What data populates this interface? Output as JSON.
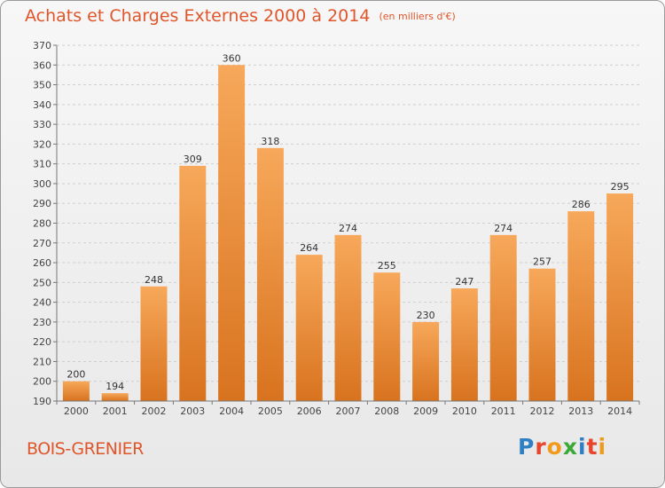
{
  "title": "Achats et Charges Externes 2000 à 2014",
  "subtitle": "(en milliers d'€)",
  "footer_label": "BOIS-GRENIER",
  "logo": {
    "text": "Proxiti",
    "letters": [
      {
        "char": "P",
        "color": "#2e7fc4"
      },
      {
        "char": "r",
        "color": "#e8452c"
      },
      {
        "char": "o",
        "color": "#f29a1b"
      },
      {
        "char": "x",
        "color": "#3aa935"
      },
      {
        "char": "i",
        "color": "#2e7fc4"
      },
      {
        "char": "t",
        "color": "#e8452c"
      },
      {
        "char": "i",
        "color": "#f29a1b"
      }
    ]
  },
  "colors": {
    "accent": "#e0562a",
    "bar_top": "#f7a85a",
    "bar_bottom": "#d8731f",
    "grid": "#cfcfcf"
  },
  "chart_data": {
    "type": "bar",
    "categories": [
      "2000",
      "2001",
      "2002",
      "2003",
      "2004",
      "2005",
      "2006",
      "2007",
      "2008",
      "2009",
      "2010",
      "2011",
      "2012",
      "2013",
      "2014"
    ],
    "values": [
      200,
      194,
      248,
      309,
      360,
      318,
      264,
      274,
      255,
      230,
      247,
      274,
      257,
      286,
      295
    ],
    "ylim": [
      190,
      370
    ],
    "yticks": [
      190,
      200,
      210,
      220,
      230,
      240,
      250,
      260,
      270,
      280,
      290,
      300,
      310,
      320,
      330,
      340,
      350,
      360,
      370
    ],
    "grid": true,
    "legend": "none"
  }
}
